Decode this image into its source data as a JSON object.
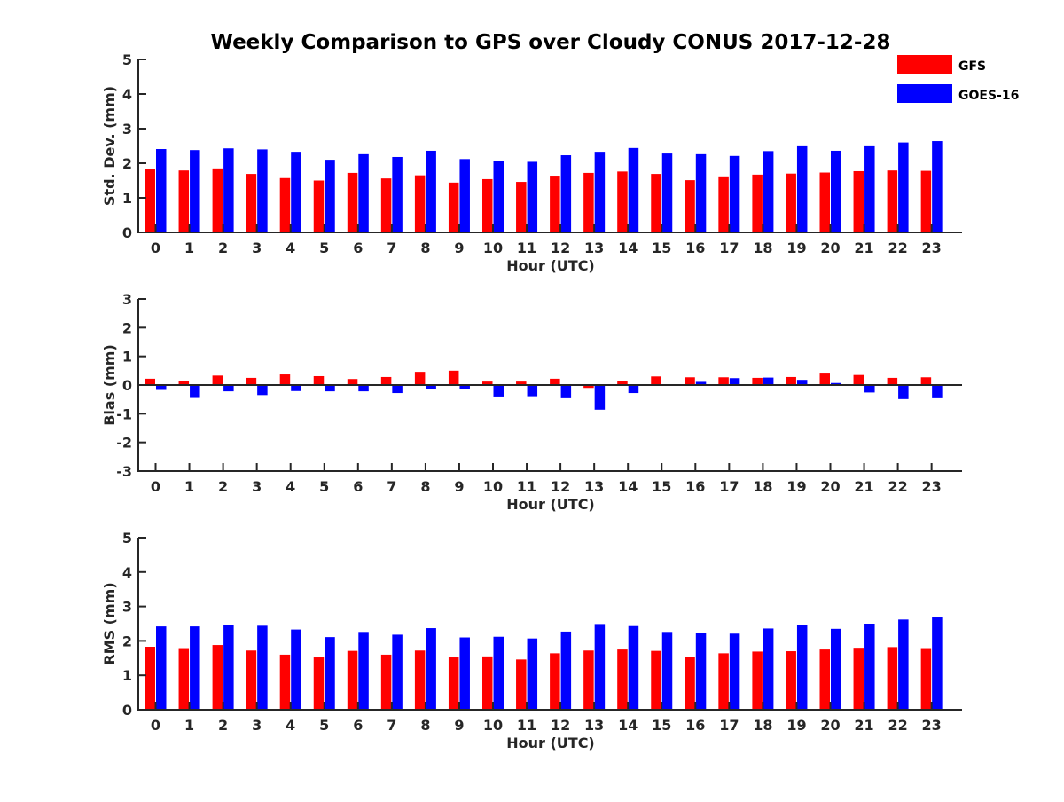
{
  "title": "Weekly Comparison to GPS over Cloudy CONUS 2017-12-28",
  "legend": {
    "position": "top-right",
    "items": [
      {
        "label": "GFS",
        "color": "#ff0000"
      },
      {
        "label": "GOES-16",
        "color": "#0000ff"
      }
    ]
  },
  "chart_data": [
    {
      "type": "bar",
      "xlabel": "Hour (UTC)",
      "ylabel": "Std. Dev. (mm)",
      "ylim": [
        0,
        5
      ],
      "yticks": [
        "0",
        "1",
        "2",
        "3",
        "4",
        "5"
      ],
      "categories": [
        "0",
        "1",
        "2",
        "3",
        "4",
        "5",
        "6",
        "7",
        "8",
        "9",
        "10",
        "11",
        "12",
        "13",
        "14",
        "15",
        "16",
        "17",
        "18",
        "19",
        "20",
        "21",
        "22",
        "23"
      ],
      "series": [
        {
          "name": "GFS",
          "color": "#ff0000",
          "values": [
            1.82,
            1.79,
            1.85,
            1.69,
            1.57,
            1.5,
            1.72,
            1.56,
            1.65,
            1.44,
            1.54,
            1.46,
            1.64,
            1.72,
            1.76,
            1.69,
            1.51,
            1.62,
            1.67,
            1.7,
            1.73,
            1.77,
            1.79,
            1.78
          ]
        },
        {
          "name": "GOES-16",
          "color": "#0000ff",
          "values": [
            2.41,
            2.38,
            2.43,
            2.4,
            2.33,
            2.1,
            2.26,
            2.18,
            2.36,
            2.12,
            2.07,
            2.04,
            2.23,
            2.33,
            2.44,
            2.28,
            2.26,
            2.21,
            2.35,
            2.49,
            2.36,
            2.49,
            2.6,
            2.64
          ]
        }
      ]
    },
    {
      "type": "bar",
      "xlabel": "Hour (UTC)",
      "ylabel": "Bias (mm)",
      "ylim": [
        -3,
        3
      ],
      "yticks": [
        "-3",
        "-2",
        "-1",
        "0",
        "1",
        "2",
        "3"
      ],
      "categories": [
        "0",
        "1",
        "2",
        "3",
        "4",
        "5",
        "6",
        "7",
        "8",
        "9",
        "10",
        "11",
        "12",
        "13",
        "14",
        "15",
        "16",
        "17",
        "18",
        "19",
        "20",
        "21",
        "22",
        "23"
      ],
      "series": [
        {
          "name": "GFS",
          "color": "#ff0000",
          "values": [
            0.22,
            0.13,
            0.33,
            0.25,
            0.37,
            0.31,
            0.21,
            0.28,
            0.46,
            0.5,
            0.12,
            0.12,
            0.22,
            -0.1,
            0.15,
            0.3,
            0.27,
            0.27,
            0.25,
            0.28,
            0.4,
            0.35,
            0.25,
            0.27
          ]
        },
        {
          "name": "GOES-16",
          "color": "#0000ff",
          "values": [
            -0.17,
            -0.45,
            -0.22,
            -0.35,
            -0.21,
            -0.22,
            -0.22,
            -0.28,
            -0.14,
            -0.14,
            -0.4,
            -0.39,
            -0.46,
            -0.86,
            -0.28,
            0.0,
            0.11,
            0.24,
            0.26,
            0.18,
            0.07,
            -0.26,
            -0.49,
            -0.46
          ]
        }
      ]
    },
    {
      "type": "bar",
      "xlabel": "Hour (UTC)",
      "ylabel": "RMS (mm)",
      "ylim": [
        0,
        5
      ],
      "yticks": [
        "0",
        "1",
        "2",
        "3",
        "4",
        "5"
      ],
      "categories": [
        "0",
        "1",
        "2",
        "3",
        "4",
        "5",
        "6",
        "7",
        "8",
        "9",
        "10",
        "11",
        "12",
        "13",
        "14",
        "15",
        "16",
        "17",
        "18",
        "19",
        "20",
        "21",
        "22",
        "23"
      ],
      "series": [
        {
          "name": "GFS",
          "color": "#ff0000",
          "values": [
            1.83,
            1.79,
            1.88,
            1.72,
            1.6,
            1.52,
            1.71,
            1.6,
            1.72,
            1.52,
            1.55,
            1.46,
            1.64,
            1.72,
            1.75,
            1.71,
            1.54,
            1.64,
            1.69,
            1.7,
            1.75,
            1.8,
            1.82,
            1.79
          ]
        },
        {
          "name": "GOES-16",
          "color": "#0000ff",
          "values": [
            2.42,
            2.42,
            2.45,
            2.44,
            2.33,
            2.11,
            2.26,
            2.18,
            2.37,
            2.1,
            2.12,
            2.07,
            2.27,
            2.49,
            2.43,
            2.26,
            2.23,
            2.21,
            2.36,
            2.46,
            2.35,
            2.5,
            2.62,
            2.68
          ]
        }
      ]
    }
  ]
}
